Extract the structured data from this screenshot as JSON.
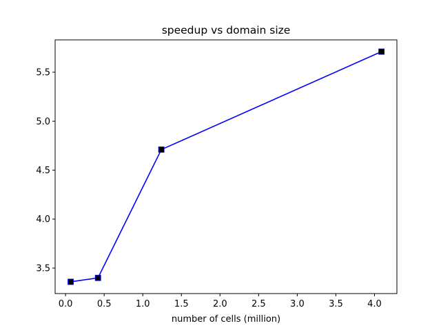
{
  "chart_data": {
    "type": "line",
    "title": "speedup vs domain size",
    "xlabel": "number of cells (million)",
    "ylabel": "",
    "x": [
      0.066,
      0.42,
      1.24,
      4.09
    ],
    "series": [
      {
        "values": [
          3.36,
          3.4,
          4.71,
          5.71
        ],
        "color": "#0000ff",
        "marker": "square",
        "marker_color": "#000000"
      }
    ],
    "xlim": [
      -0.135,
      4.29
    ],
    "ylim": [
      3.24,
      5.83
    ],
    "xticks": [
      0.0,
      0.5,
      1.0,
      1.5,
      2.0,
      2.5,
      3.0,
      3.5,
      4.0
    ],
    "xtick_labels": [
      "0.0",
      "0.5",
      "1.0",
      "1.5",
      "2.0",
      "2.5",
      "3.0",
      "3.5",
      "4.0"
    ],
    "yticks": [
      3.5,
      4.0,
      4.5,
      5.0,
      5.5
    ],
    "ytick_labels": [
      "3.5",
      "4.0",
      "4.5",
      "5.0",
      "5.5"
    ],
    "grid": false,
    "legend": "none"
  }
}
